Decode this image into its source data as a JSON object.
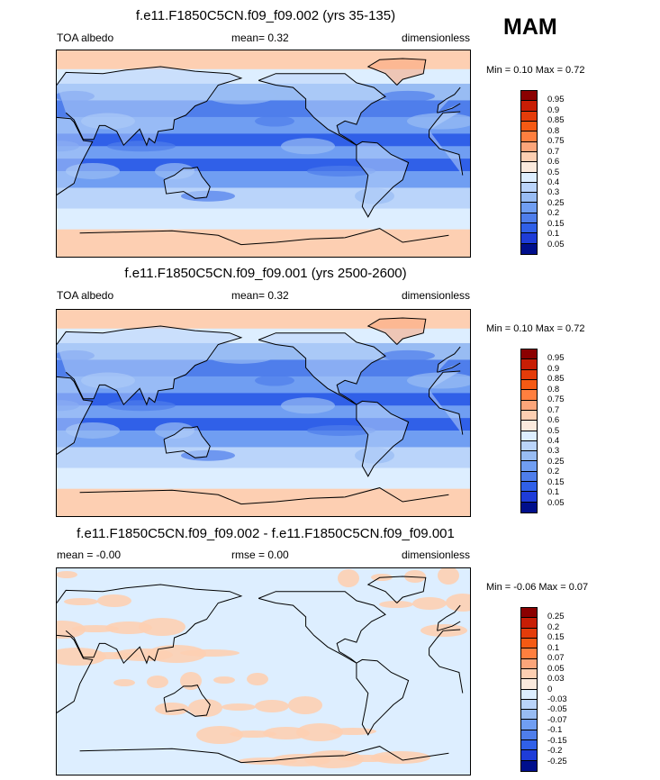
{
  "season": "MAM",
  "panels": [
    {
      "id": "top",
      "title": "f.e11.F1850C5CN.f09_f09.002 (yrs 35-135)",
      "left_label": "TOA albedo",
      "mid_label": "mean=   0.32",
      "right_label": "dimensionless",
      "minmax": "Min =   0.10 Max =   0.72",
      "colorbar": {
        "levels": [
          "0.95",
          "0.9",
          "0.85",
          "0.8",
          "0.75",
          "0.7",
          "0.6",
          "0.5",
          "0.4",
          "0.3",
          "0.25",
          "0.2",
          "0.15",
          "0.1",
          "0.05"
        ],
        "colors": [
          "#8b0000",
          "#c81e05",
          "#e43c0a",
          "#f55a14",
          "#ff7f3f",
          "#fba57a",
          "#fdcfb2",
          "#fbeadd",
          "#ddeeff",
          "#bad4fa",
          "#98bcf3",
          "#709ef2",
          "#4f7eeb",
          "#3060e8",
          "#1e3cd8",
          "#000f8c"
        ]
      },
      "map_style": "albedo"
    },
    {
      "id": "middle",
      "title": "f.e11.F1850C5CN.f09_f09.001 (yrs 2500-2600)",
      "left_label": "TOA albedo",
      "mid_label": "mean=   0.32",
      "right_label": "dimensionless",
      "minmax": "Min =   0.10 Max =   0.72",
      "colorbar": {
        "levels": [
          "0.95",
          "0.9",
          "0.85",
          "0.8",
          "0.75",
          "0.7",
          "0.6",
          "0.5",
          "0.4",
          "0.3",
          "0.25",
          "0.2",
          "0.15",
          "0.1",
          "0.05"
        ],
        "colors": [
          "#8b0000",
          "#c81e05",
          "#e43c0a",
          "#f55a14",
          "#ff7f3f",
          "#fba57a",
          "#fdcfb2",
          "#fbeadd",
          "#ddeeff",
          "#bad4fa",
          "#98bcf3",
          "#709ef2",
          "#4f7eeb",
          "#3060e8",
          "#1e3cd8",
          "#000f8c"
        ]
      },
      "map_style": "albedo"
    },
    {
      "id": "bottom",
      "title": "f.e11.F1850C5CN.f09_f09.002 - f.e11.F1850C5CN.f09_f09.001",
      "left_label": "mean =  -0.00",
      "mid_label": "rmse =   0.00",
      "right_label": "dimensionless",
      "minmax": "Min =  -0.06 Max =   0.07",
      "colorbar": {
        "levels": [
          "0.25",
          "0.2",
          "0.15",
          "0.1",
          "0.07",
          "0.05",
          "0.03",
          "0",
          "-0.03",
          "-0.05",
          "-0.07",
          "-0.1",
          "-0.15",
          "-0.2",
          "-0.25"
        ],
        "colors": [
          "#8b0000",
          "#c81e05",
          "#e43c0a",
          "#f55a14",
          "#ff7f3f",
          "#fba57a",
          "#fdcfb2",
          "#fbeadd",
          "#ddeeff",
          "#bad4fa",
          "#98bcf3",
          "#709ef2",
          "#4f7eeb",
          "#3060e8",
          "#1e3cd8",
          "#000f8c"
        ]
      },
      "map_style": "difference"
    }
  ]
}
